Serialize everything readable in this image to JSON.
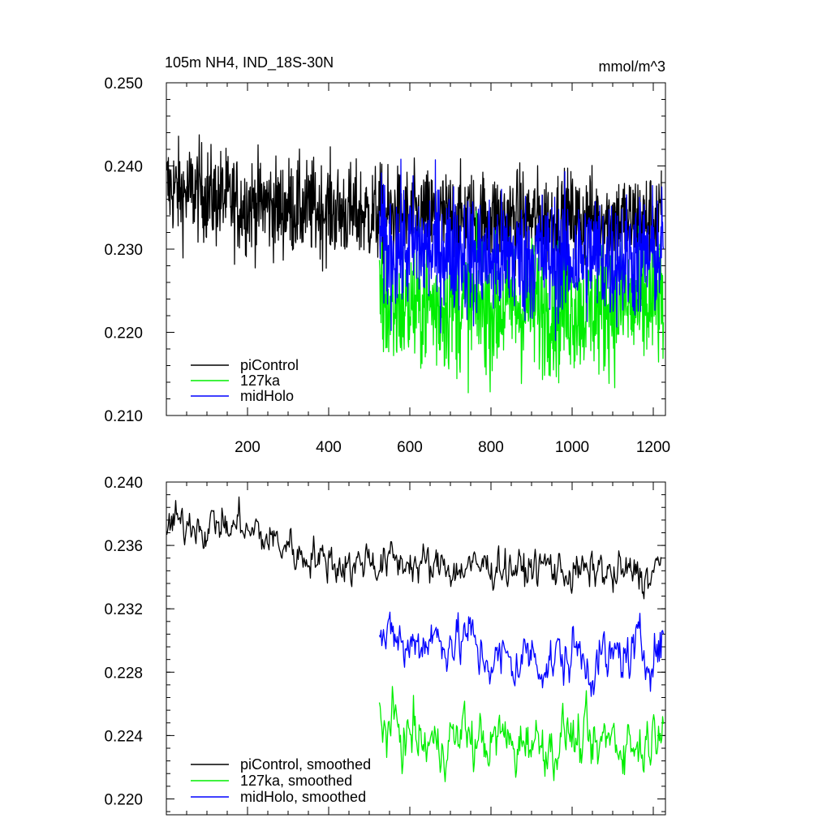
{
  "chart_data": [
    {
      "type": "line",
      "title": "105m NH4, IND_18S-30N",
      "units": "mmol/m^3",
      "xlim": [
        0,
        1230
      ],
      "ylim": [
        0.21,
        0.25
      ],
      "x_ticks": [
        "200",
        "400",
        "600",
        "800",
        "1000",
        "1200"
      ],
      "y_ticks": [
        "0.210",
        "0.220",
        "0.230",
        "0.240",
        "0.250"
      ],
      "legend_position": "bottom-left",
      "series": [
        {
          "name": "piControl",
          "color": "#000000",
          "x_start": 1,
          "x_end": 1220,
          "values": [
            0.2375,
            0.2372,
            0.2366,
            0.2369,
            0.2371,
            0.2365,
            0.236,
            0.2363,
            0.2357,
            0.2352,
            0.2355,
            0.2353,
            0.2356,
            0.2351,
            0.2348,
            0.2352,
            0.235,
            0.2347,
            0.235,
            0.2346,
            0.2349,
            0.2344,
            0.2345,
            0.2341,
            0.2344,
            0.234,
            0.2343,
            0.2338,
            0.2341,
            0.2336,
            0.2339,
            0.2337,
            0.2336,
            0.2339,
            0.2336,
            0.2337,
            0.2335,
            0.2338,
            0.2335,
            0.2336,
            0.2334,
            0.2337,
            0.2335,
            0.2336,
            0.2338,
            0.2335,
            0.2336,
            0.2334,
            0.2337,
            0.2335,
            0.2336,
            0.2333,
            0.2337,
            0.2334,
            0.2336,
            0.2335,
            0.2336,
            0.2334,
            0.2336,
            0.2333,
            0.2335,
            0.2338
          ]
        },
        {
          "name": "127ka",
          "color": "#00ee00",
          "x_start": 525,
          "x_end": 1225,
          "values": [
            0.2255,
            0.2228,
            0.2232,
            0.2235,
            0.2229,
            0.2237,
            0.2231,
            0.2226,
            0.2238,
            0.223,
            0.2233,
            0.2228,
            0.2236,
            0.2225,
            0.2231,
            0.2234,
            0.2227,
            0.2235,
            0.2229,
            0.2232,
            0.2226,
            0.2233,
            0.223,
            0.2231,
            0.2234,
            0.2227,
            0.2236,
            0.2229,
            0.2233,
            0.2228,
            0.2232,
            0.2235,
            0.2237
          ]
        },
        {
          "name": "midHolo",
          "color": "#0000ff",
          "x_start": 525,
          "x_end": 1225,
          "values": [
            0.2312,
            0.2296,
            0.2302,
            0.2299,
            0.2305,
            0.2301,
            0.2298,
            0.2303,
            0.2297,
            0.2301,
            0.2292,
            0.2288,
            0.2291,
            0.2286,
            0.2289,
            0.2293,
            0.2287,
            0.229,
            0.2295,
            0.2289,
            0.2285,
            0.229,
            0.2287,
            0.2292,
            0.2296,
            0.2289,
            0.2285,
            0.2291,
            0.2288,
            0.2293,
            0.229,
            0.2294,
            0.2297
          ]
        }
      ]
    },
    {
      "type": "line",
      "title": "",
      "xlim": [
        0,
        1230
      ],
      "ylim": [
        0.219,
        0.24
      ],
      "y_ticks": [
        "0.220",
        "0.224",
        "0.228",
        "0.232",
        "0.236",
        "0.240"
      ],
      "legend_position": "bottom-left",
      "series": [
        {
          "name": "piControl, smoothed",
          "color": "#000000",
          "x_start": 1,
          "x_end": 1220,
          "values": [
            0.2372,
            0.2375,
            0.2371,
            0.2377,
            0.2374,
            0.2369,
            0.2376,
            0.2373,
            0.2368,
            0.2378,
            0.2366,
            0.237,
            0.2363,
            0.2365,
            0.2359,
            0.2362,
            0.2355,
            0.2352,
            0.2357,
            0.2349,
            0.2353,
            0.2346,
            0.2351,
            0.2345,
            0.235,
            0.2354,
            0.2347,
            0.2349,
            0.2352,
            0.2348,
            0.2351,
            0.2346,
            0.2349,
            0.2343,
            0.2351,
            0.2346,
            0.2342,
            0.2349,
            0.2344,
            0.2348,
            0.2345,
            0.235,
            0.2344,
            0.2347,
            0.2342,
            0.2348,
            0.2345,
            0.2349,
            0.2343,
            0.2346,
            0.234,
            0.2345,
            0.2341,
            0.2347,
            0.2343,
            0.2339,
            0.2344,
            0.2341,
            0.2345,
            0.2338,
            0.2342,
            0.2348
          ]
        },
        {
          "name": "127ka, smoothed",
          "color": "#00ee00",
          "x_start": 525,
          "x_end": 1225,
          "values": [
            0.2255,
            0.2242,
            0.2248,
            0.2236,
            0.2244,
            0.2232,
            0.2238,
            0.2229,
            0.2241,
            0.2235,
            0.2247,
            0.2233,
            0.2239,
            0.2231,
            0.2242,
            0.2236,
            0.2229,
            0.2243,
            0.2234,
            0.2238,
            0.223,
            0.2237,
            0.2245,
            0.2233,
            0.2239,
            0.2227,
            0.2236,
            0.2241,
            0.2233,
            0.2238,
            0.2231,
            0.2236,
            0.2242,
            0.226
          ]
        },
        {
          "name": "midHolo, smoothed",
          "color": "#0000ff",
          "x_start": 525,
          "x_end": 1225,
          "values": [
            0.2308,
            0.2296,
            0.2305,
            0.229,
            0.2302,
            0.2298,
            0.2306,
            0.2295,
            0.2303,
            0.2297,
            0.2307,
            0.2292,
            0.2289,
            0.2285,
            0.229,
            0.2284,
            0.2287,
            0.2293,
            0.2288,
            0.2283,
            0.2291,
            0.2286,
            0.2295,
            0.2289,
            0.2282,
            0.229,
            0.2285,
            0.2293,
            0.2288,
            0.2296,
            0.2291,
            0.2294,
            0.2298
          ]
        }
      ]
    }
  ]
}
